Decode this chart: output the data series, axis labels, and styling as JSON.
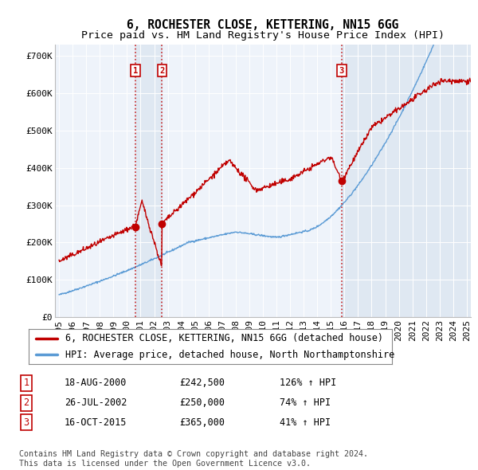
{
  "title": "6, ROCHESTER CLOSE, KETTERING, NN15 6GG",
  "subtitle": "Price paid vs. HM Land Registry's House Price Index (HPI)",
  "ylabel_ticks": [
    "£0",
    "£100K",
    "£200K",
    "£300K",
    "£400K",
    "£500K",
    "£600K",
    "£700K"
  ],
  "ytick_values": [
    0,
    100000,
    200000,
    300000,
    400000,
    500000,
    600000,
    700000
  ],
  "ylim": [
    0,
    730000
  ],
  "xlim_start": 1994.7,
  "xlim_end": 2025.3,
  "sale_dates": [
    2000.6274,
    2002.5699,
    2015.7918
  ],
  "sale_prices": [
    242500,
    250000,
    365000
  ],
  "sale_labels": [
    "1",
    "2",
    "3"
  ],
  "hpi_line_color": "#5b9bd5",
  "price_line_color": "#c00000",
  "vline_color": "#c00000",
  "shaded_color": "#dce6f1",
  "chart_bg_color": "#eef3fa",
  "grid_color": "#ffffff",
  "background_color": "#ffffff",
  "legend_entries": [
    "6, ROCHESTER CLOSE, KETTERING, NN15 6GG (detached house)",
    "HPI: Average price, detached house, North Northamptonshire"
  ],
  "table_rows": [
    [
      "1",
      "18-AUG-2000",
      "£242,500",
      "126% ↑ HPI"
    ],
    [
      "2",
      "26-JUL-2002",
      "£250,000",
      "74% ↑ HPI"
    ],
    [
      "3",
      "16-OCT-2015",
      "£365,000",
      "41% ↑ HPI"
    ]
  ],
  "footnote": "Contains HM Land Registry data © Crown copyright and database right 2024.\nThis data is licensed under the Open Government Licence v3.0.",
  "title_fontsize": 10.5,
  "subtitle_fontsize": 9.5,
  "tick_fontsize": 8,
  "legend_fontsize": 8.5,
  "table_fontsize": 8.5,
  "footnote_fontsize": 7.2
}
